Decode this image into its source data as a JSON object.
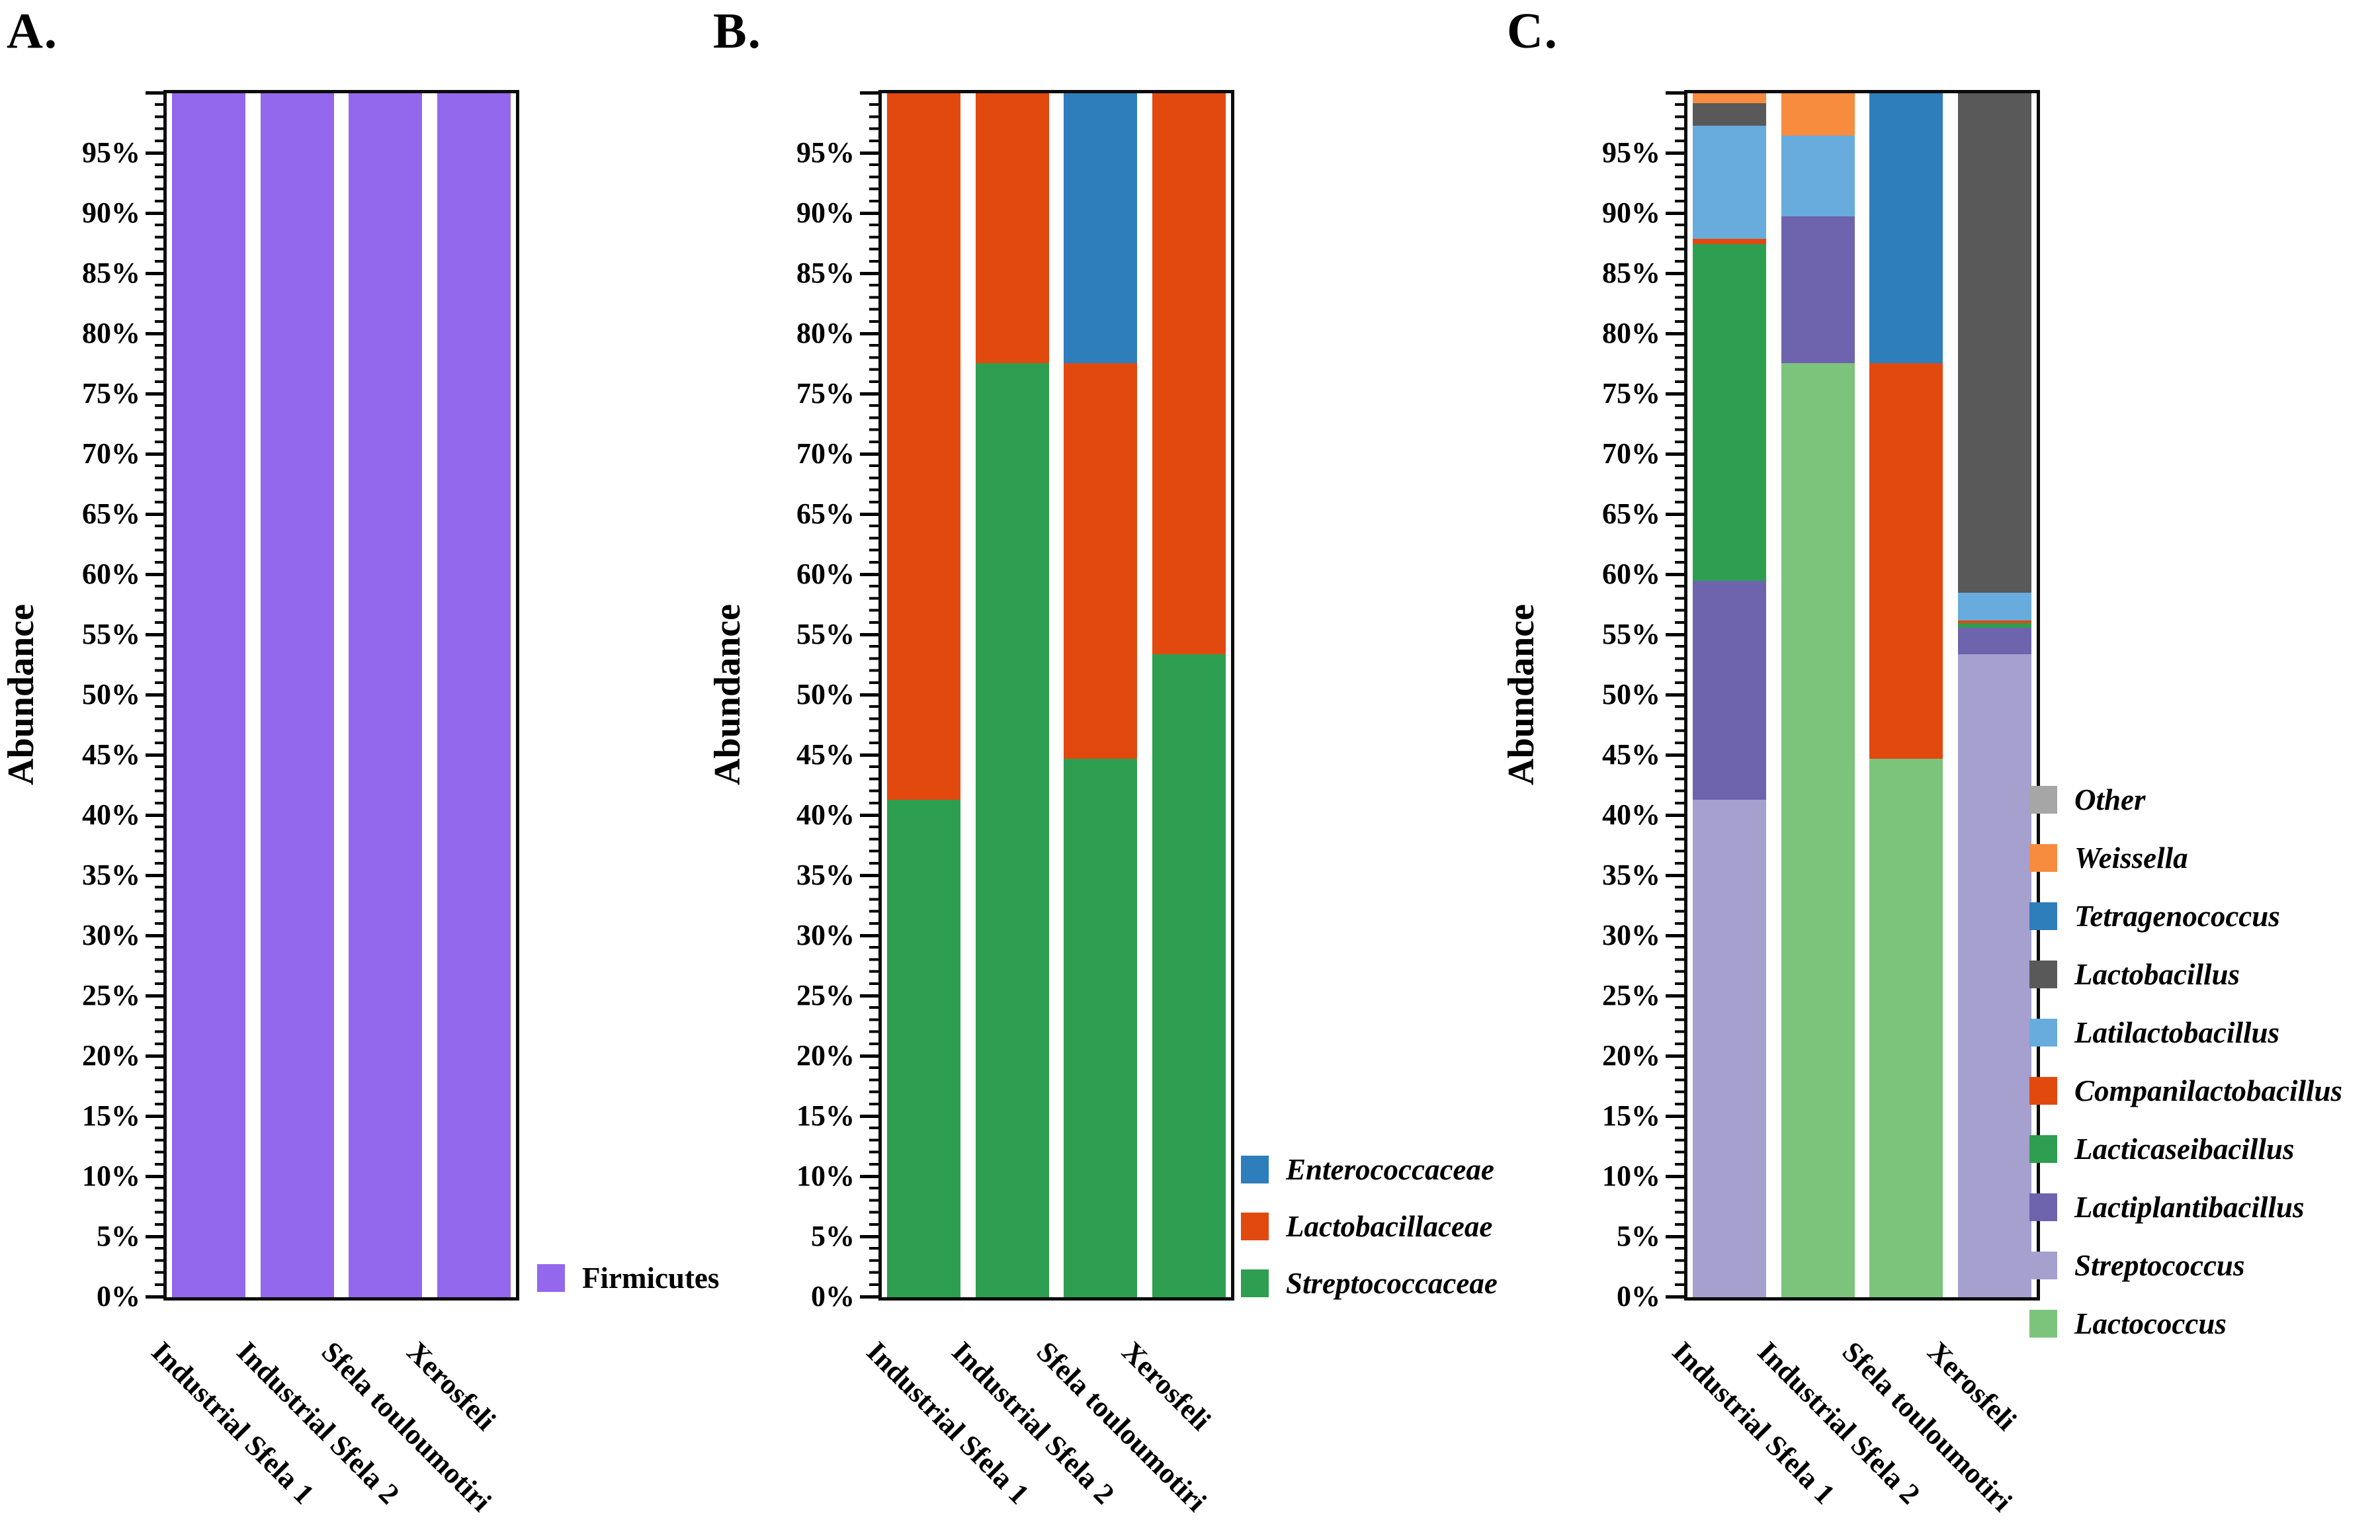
{
  "chart_data": {
    "type": "bar",
    "subtype": "stacked-100-percent",
    "title": "",
    "ylabel": "Abundance",
    "xlabel": "",
    "ylim": [
      0,
      100
    ],
    "grid": false,
    "ytick_major_step_pct": 5,
    "ytick_minor_step_pct": 1,
    "ytick_labels": [
      "0%",
      "5%",
      "10%",
      "15%",
      "20%",
      "25%",
      "30%",
      "35%",
      "40%",
      "45%",
      "50%",
      "55%",
      "60%",
      "65%",
      "70%",
      "75%",
      "80%",
      "85%",
      "90%",
      "95%"
    ],
    "categories": [
      "Industrial Sfela 1",
      "Industrial Sfela 2",
      "Sfela touloumotiri",
      "Xerosfeli"
    ],
    "colors": {
      "Firmicutes": "#9468EC",
      "Enterococcaceae": "#2E7EBC",
      "Lactobacillaceae": "#E2490F",
      "Streptococcaceae": "#2E9E50",
      "Other": "#A6A6A6",
      "Weissella": "#F78C3F",
      "Tetragenococcus": "#2E7EBC",
      "Lactobacillus": "#595959",
      "Latilactobacillus": "#67ACDC",
      "Companilactobacillus": "#E2490F",
      "Lacticaseibacillus": "#2E9E50",
      "Lactiplantibacillus": "#6E64AD",
      "Streptococcus": "#A5A0CE",
      "Lactococcus": "#7CC47B"
    },
    "panels": [
      {
        "letter": "A.",
        "taxonomic_level": "phylum",
        "legend_position": "right-bottom",
        "legend_italic": false,
        "legend": [
          "Firmicutes"
        ],
        "stack_order_bottom_to_top": [
          "Firmicutes"
        ],
        "series": [
          {
            "name": "Firmicutes",
            "values": [
              100,
              100,
              100,
              100
            ]
          }
        ]
      },
      {
        "letter": "B.",
        "taxonomic_level": "family",
        "legend_position": "right-bottom",
        "legend_italic": true,
        "legend": [
          "Enterococcaceae",
          "Lactobacillaceae",
          "Streptococcaceae"
        ],
        "stack_order_bottom_to_top": [
          "Streptococcaceae",
          "Lactobacillaceae",
          "Enterococcaceae"
        ],
        "series": [
          {
            "name": "Streptococcaceae",
            "values": [
              41.3,
              77.6,
              44.7,
              53.4
            ]
          },
          {
            "name": "Lactobacillaceae",
            "values": [
              58.7,
              22.4,
              32.9,
              46.6
            ]
          },
          {
            "name": "Enterococcaceae",
            "values": [
              0,
              0,
              22.4,
              0
            ]
          }
        ]
      },
      {
        "letter": "C.",
        "taxonomic_level": "genus",
        "legend_position": "right-middle",
        "legend_italic": true,
        "legend": [
          "Other",
          "Weissella",
          "Tetragenococcus",
          "Lactobacillus",
          "Latilactobacillus",
          "Companilactobacillus",
          "Lacticaseibacillus",
          "Lactiplantibacillus",
          "Streptococcus",
          "Lactococcus"
        ],
        "stack_order_bottom_to_top": [
          "Lactococcus",
          "Streptococcus",
          "Lactiplantibacillus",
          "Lacticaseibacillus",
          "Companilactobacillus",
          "Latilactobacillus",
          "Lactobacillus",
          "Tetragenococcus",
          "Weissella",
          "Other"
        ],
        "series": [
          {
            "name": "Lactococcus",
            "values": [
              0,
              77.6,
              44.7,
              0
            ]
          },
          {
            "name": "Streptococcus",
            "values": [
              41.3,
              0,
              0,
              53.4
            ]
          },
          {
            "name": "Lactiplantibacillus",
            "values": [
              18.2,
              12.2,
              0,
              2.2
            ]
          },
          {
            "name": "Lacticaseibacillus",
            "values": [
              28.0,
              0,
              0,
              0.4
            ]
          },
          {
            "name": "Companilactobacillus",
            "values": [
              0.4,
              0,
              32.9,
              0.2
            ]
          },
          {
            "name": "Latilactobacillus",
            "values": [
              9.4,
              6.7,
              0,
              2.3
            ]
          },
          {
            "name": "Lactobacillus",
            "values": [
              1.9,
              0,
              0,
              41.5
            ]
          },
          {
            "name": "Tetragenococcus",
            "values": [
              0,
              0,
              22.4,
              0
            ]
          },
          {
            "name": "Weissella",
            "values": [
              0.8,
              3.5,
              0,
              0
            ]
          },
          {
            "name": "Other",
            "values": [
              0,
              0,
              0,
              0
            ]
          }
        ]
      }
    ]
  }
}
